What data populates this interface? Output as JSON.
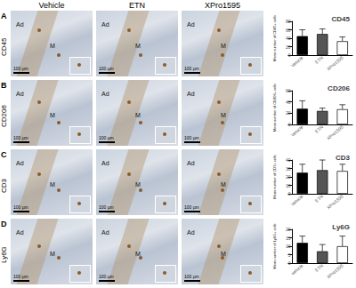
{
  "columns": [
    "Vehicle",
    "ETN",
    "XPro1595"
  ],
  "rows": [
    {
      "letter": "A",
      "marker": "CD45"
    },
    {
      "letter": "B",
      "marker": "CD206"
    },
    {
      "letter": "C",
      "marker": "CD3"
    },
    {
      "letter": "D",
      "marker": "Ly6G"
    }
  ],
  "image_labels": [
    "Ad",
    "M"
  ],
  "scale_bar": "100 µm",
  "chart_data": [
    {
      "type": "bar",
      "title": "CD45",
      "y_label": "Mean number of CD45+ cells",
      "categories": [
        "Vehicle",
        "ETN",
        "XPro1595"
      ],
      "values": [
        45,
        50,
        33
      ],
      "errors": [
        15,
        12,
        10
      ],
      "colors": [
        "#000000",
        "#555555",
        "#ffffff"
      ],
      "ylim": [
        0,
        80
      ],
      "yticks": [
        0,
        20,
        40,
        60,
        80
      ]
    },
    {
      "type": "bar",
      "title": "CD206",
      "y_label": "Mean number of CD206+ cells",
      "categories": [
        "Vehicle",
        "ETN",
        "XPro1595"
      ],
      "values": [
        28,
        24,
        27
      ],
      "errors": [
        14,
        5,
        8
      ],
      "colors": [
        "#000000",
        "#555555",
        "#ffffff"
      ],
      "ylim": [
        0,
        60
      ],
      "yticks": [
        0,
        20,
        40,
        60
      ]
    },
    {
      "type": "bar",
      "title": "CD3",
      "y_label": "Mean number of CD3+ cells",
      "categories": [
        "Vehicle",
        "ETN",
        "XPro1595"
      ],
      "values": [
        25,
        28,
        27
      ],
      "errors": [
        10,
        12,
        8
      ],
      "colors": [
        "#000000",
        "#555555",
        "#ffffff"
      ],
      "ylim": [
        0,
        40
      ],
      "yticks": [
        0,
        10,
        20,
        30,
        40
      ]
    },
    {
      "type": "bar",
      "title": "Ly6G",
      "y_label": "Mean number of Ly6G+ cells",
      "categories": [
        "vehicle",
        "ETN",
        "XPro1595"
      ],
      "values": [
        12,
        7,
        10
      ],
      "errors": [
        4,
        4,
        6
      ],
      "colors": [
        "#000000",
        "#555555",
        "#ffffff"
      ],
      "ylim": [
        0,
        20
      ],
      "yticks": [
        0,
        5,
        10,
        15,
        20
      ]
    }
  ]
}
